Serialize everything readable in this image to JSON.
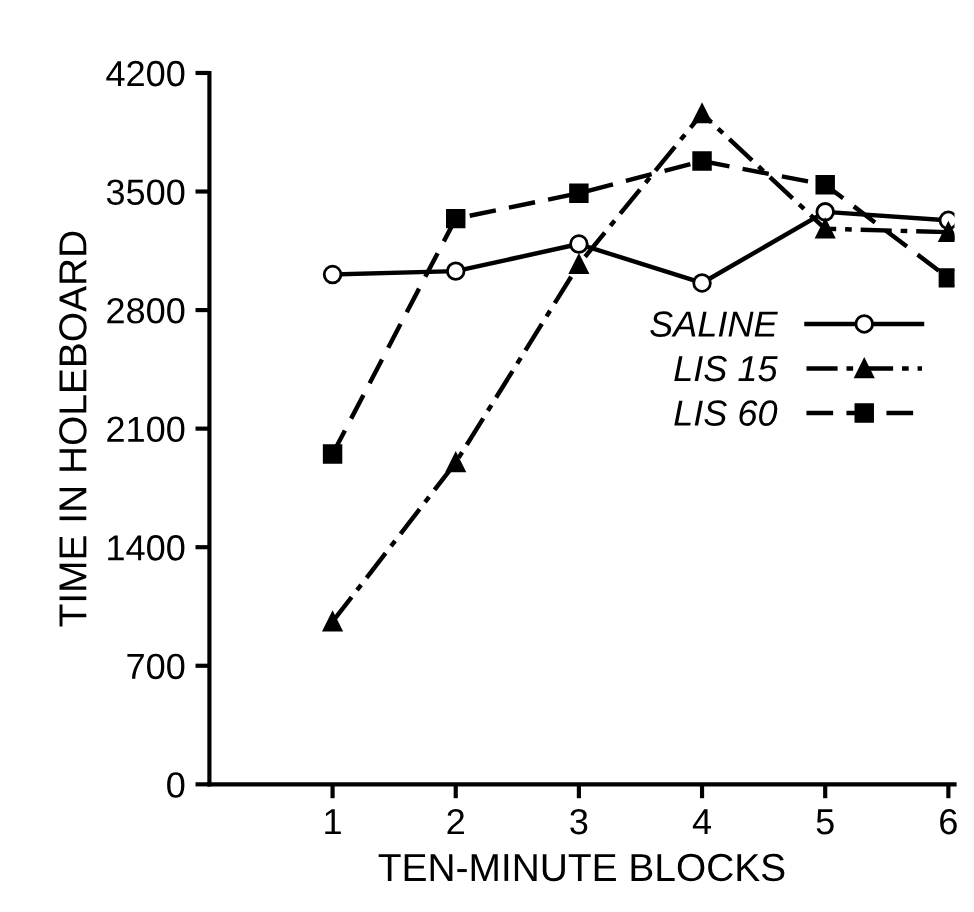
{
  "chart_data": {
    "type": "line",
    "xlabel": "TEN-MINUTE BLOCKS",
    "ylabel": "TIME IN HOLEBOARD",
    "x": [
      1,
      2,
      3,
      4,
      5,
      6
    ],
    "series": [
      {
        "name": "SALINE",
        "color": "#000000",
        "marker": "circle",
        "line_style": "solid",
        "values": [
          3010,
          3030,
          3190,
          2960,
          3380,
          3330
        ]
      },
      {
        "name": "LIS 15",
        "color": "#000000",
        "marker": "triangle",
        "line_style": "dashdot",
        "values": [
          960,
          1900,
          3070,
          3960,
          3280,
          3260
        ]
      },
      {
        "name": "LIS 60",
        "color": "#000000",
        "marker": "square",
        "line_style": "dashed",
        "values": [
          1950,
          3340,
          3490,
          3680,
          3540,
          2990
        ]
      }
    ],
    "xlim": [
      0,
      6.05
    ],
    "xticks": [
      1,
      2,
      3,
      4,
      5,
      6
    ],
    "ylim": [
      0,
      4200
    ],
    "yticks": [
      0,
      700,
      1400,
      2100,
      2800,
      3500,
      4200
    ],
    "grid": false,
    "legend": "right"
  }
}
